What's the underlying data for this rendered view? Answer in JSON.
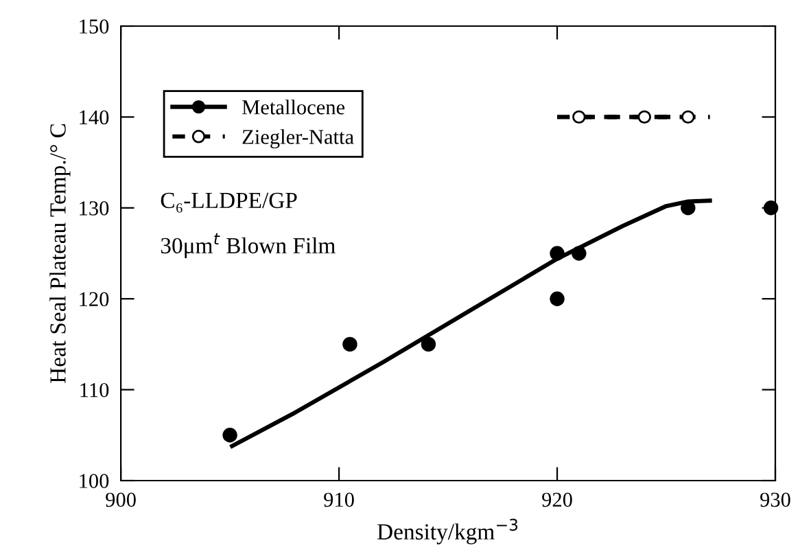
{
  "chart_data": {
    "type": "scatter",
    "xlabel": "Density/kgm$^{−3}$",
    "ylabel": "Heat Seal Plateau Temp./° C",
    "annotations": [
      "C₆-LLDPE/GP",
      "30μm$^{t}$ Blown Film"
    ],
    "series": [
      {
        "name": "Metallocene",
        "color": "#000000",
        "marker": "circle",
        "line_style": "solid",
        "x": [
          905,
          910.5,
          914.1,
          920,
          920,
          921,
          926,
          929.8
        ],
        "values": [
          105,
          115,
          115,
          125,
          120,
          125,
          130,
          130
        ]
      },
      {
        "type": "line",
        "color": "#000000",
        "marker": "none",
        "line_style": "solid",
        "x": [
          905.1,
          908,
          912,
          916,
          920,
          923,
          925,
          926,
          927
        ],
        "values": [
          103.8,
          107.5,
          113,
          118.7,
          124.4,
          128,
          130.2,
          130.7,
          130.8
        ]
      },
      {
        "type": "line",
        "color": "#000000",
        "marker": "none",
        "line_style": "dashed",
        "x": [
          920,
          927
        ],
        "values": [
          140,
          140
        ]
      },
      {
        "name": "Ziegler-Natta",
        "type": "line",
        "color": "#000000",
        "marker": "circle",
        "line_style": "dashed",
        "x": [
          921,
          924,
          926
        ],
        "values": [
          140,
          140,
          140
        ]
      }
    ],
    "xlim": [
      900,
      930
    ],
    "xticks": [
      900,
      910,
      920,
      930
    ],
    "ylim": [
      100,
      150
    ],
    "yticks": [
      100,
      110,
      120,
      130,
      140,
      150
    ],
    "grid": false,
    "legend": "top left"
  }
}
